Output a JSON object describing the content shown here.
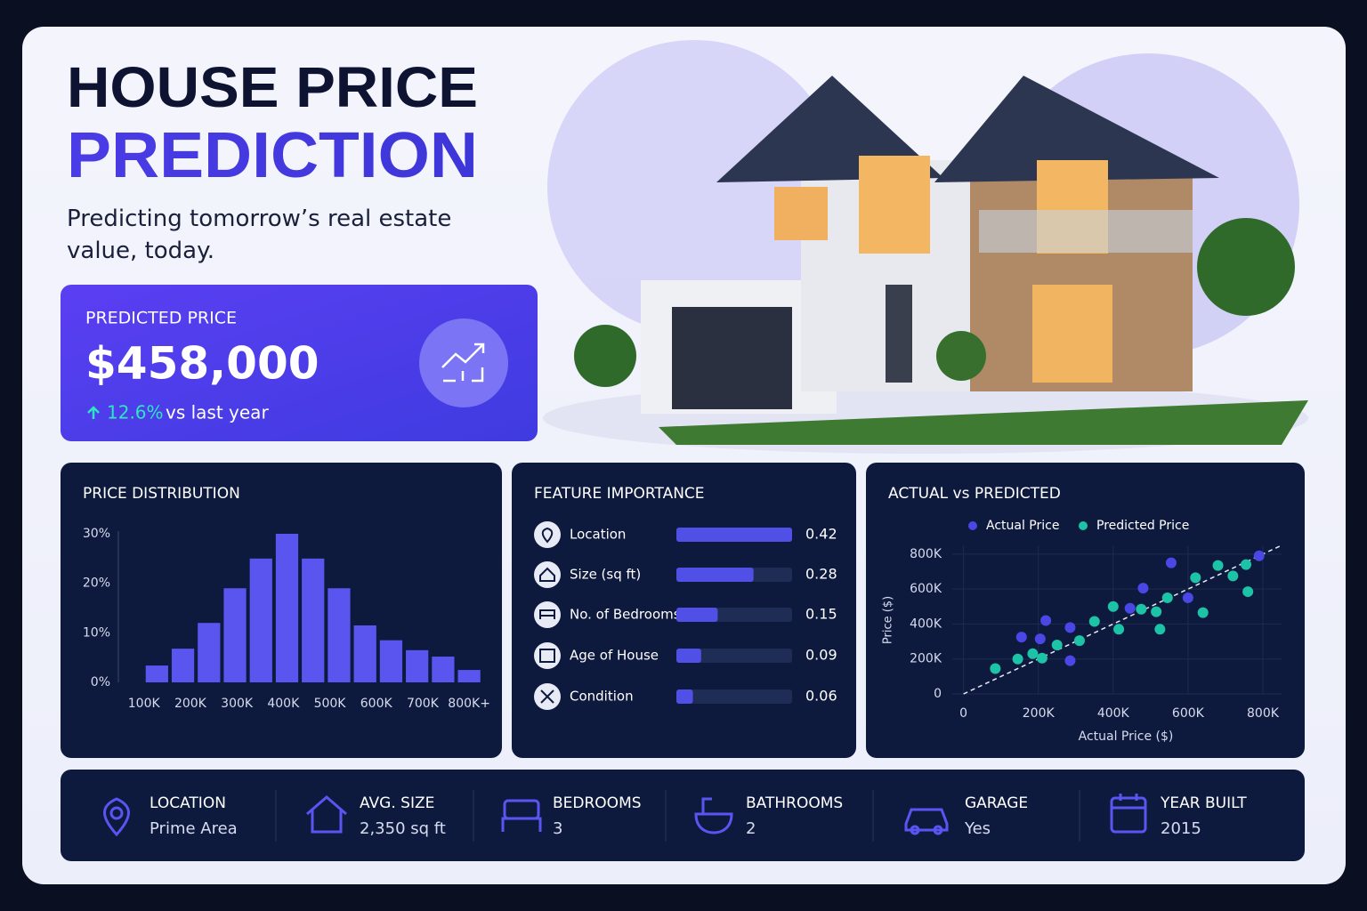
{
  "header": {
    "title_line1": "HOUSE PRICE",
    "title_line2": "PREDICTION",
    "subtitle": "Predicting tomorrow’s real estate value, today."
  },
  "prediction": {
    "label": "PREDICTED PRICE",
    "price": "$458,000",
    "change": "12.6%",
    "change_note": "vs last year"
  },
  "chart_data": [
    {
      "type": "histogram",
      "title": "PRICE DISTRIBUTION",
      "color": "#5b55f0",
      "bins": [
        100000,
        156000,
        212000,
        268000,
        324000,
        380000,
        436000,
        492000,
        548000,
        604000,
        660000,
        716000,
        772000,
        828000
      ],
      "values": [
        3.4,
        6.8,
        12,
        19,
        25,
        30,
        25,
        19,
        11.5,
        8.5,
        6.5,
        5.2,
        2.5
      ],
      "xlim": [
        45000,
        840000
      ],
      "xticks": [
        {
          "value": 100000,
          "label": "100K"
        },
        {
          "value": 200000,
          "label": "200K"
        },
        {
          "value": 300000,
          "label": "300K"
        },
        {
          "value": 400000,
          "label": "400K"
        },
        {
          "value": 500000,
          "label": "500K"
        },
        {
          "value": 600000,
          "label": "600K"
        },
        {
          "value": 700000,
          "label": "700K"
        },
        {
          "value": 800000,
          "label": "800K+"
        }
      ],
      "ylim": [
        0,
        30
      ],
      "yticks": [
        {
          "value": 0,
          "label": "0%"
        },
        {
          "value": 10,
          "label": "10%"
        },
        {
          "value": 20,
          "label": "20%"
        },
        {
          "value": 30,
          "label": "30%"
        }
      ]
    },
    {
      "type": "bar",
      "orientation": "horizontal",
      "title": "FEATURE IMPORTANCE",
      "color": "#5150e6",
      "categories": [
        "Location",
        "Size (sq ft)",
        "No. of Bedrooms",
        "Age of House",
        "Condition"
      ],
      "values": [
        0.42,
        0.28,
        0.15,
        0.09,
        0.06
      ],
      "xlim": [
        0,
        0.42
      ]
    },
    {
      "type": "scatter",
      "title": "ACTUAL vs PREDICTED",
      "x_label": "Actual Price ($)",
      "y_label": "Price ($)",
      "grid": true,
      "xlim": [
        -30000,
        850000
      ],
      "ylim": [
        0,
        850000
      ],
      "xticks": [
        0,
        {
          "value": 200000,
          "label": "200K"
        },
        {
          "value": 400000,
          "label": "400K"
        },
        {
          "value": 600000,
          "label": "600K"
        },
        {
          "value": 800000,
          "label": "800K"
        }
      ],
      "yticks": [
        0,
        {
          "value": 200000,
          "label": "200K"
        },
        {
          "value": 400000,
          "label": "400K"
        },
        {
          "value": 600000,
          "label": "600K"
        },
        {
          "value": 800000,
          "label": "800K"
        }
      ],
      "series": [
        {
          "name": "Actual Price",
          "color": "#4b47e6",
          "x": [
            555000,
            480000,
            220000,
            155000,
            205000,
            285000,
            285000,
            445000,
            790000,
            600000
          ],
          "values": [
            750000,
            605000,
            420000,
            325000,
            315000,
            380000,
            190000,
            490000,
            790000,
            550000
          ]
        },
        {
          "name": "Predicted Price",
          "color": "#1cc3a6",
          "x": [
            85000,
            145000,
            185000,
            210000,
            250000,
            310000,
            350000,
            400000,
            415000,
            475000,
            515000,
            525000,
            545000,
            620000,
            640000,
            680000,
            720000,
            755000,
            760000
          ],
          "values": [
            145000,
            200000,
            230000,
            205000,
            280000,
            305000,
            415000,
            500000,
            370000,
            485000,
            470000,
            370000,
            550000,
            665000,
            465000,
            735000,
            675000,
            740000,
            585000
          ]
        }
      ]
    }
  ],
  "stats": [
    {
      "label": "LOCATION",
      "value": "Prime Area"
    },
    {
      "label": "AVG. SIZE",
      "value": "2,350 sq ft"
    },
    {
      "label": "BEDROOMS",
      "value": "3"
    },
    {
      "label": "BATHROOMS",
      "value": "2"
    },
    {
      "label": "GARAGE",
      "value": "Yes"
    },
    {
      "label": "YEAR BUILT",
      "value": "2015"
    }
  ]
}
